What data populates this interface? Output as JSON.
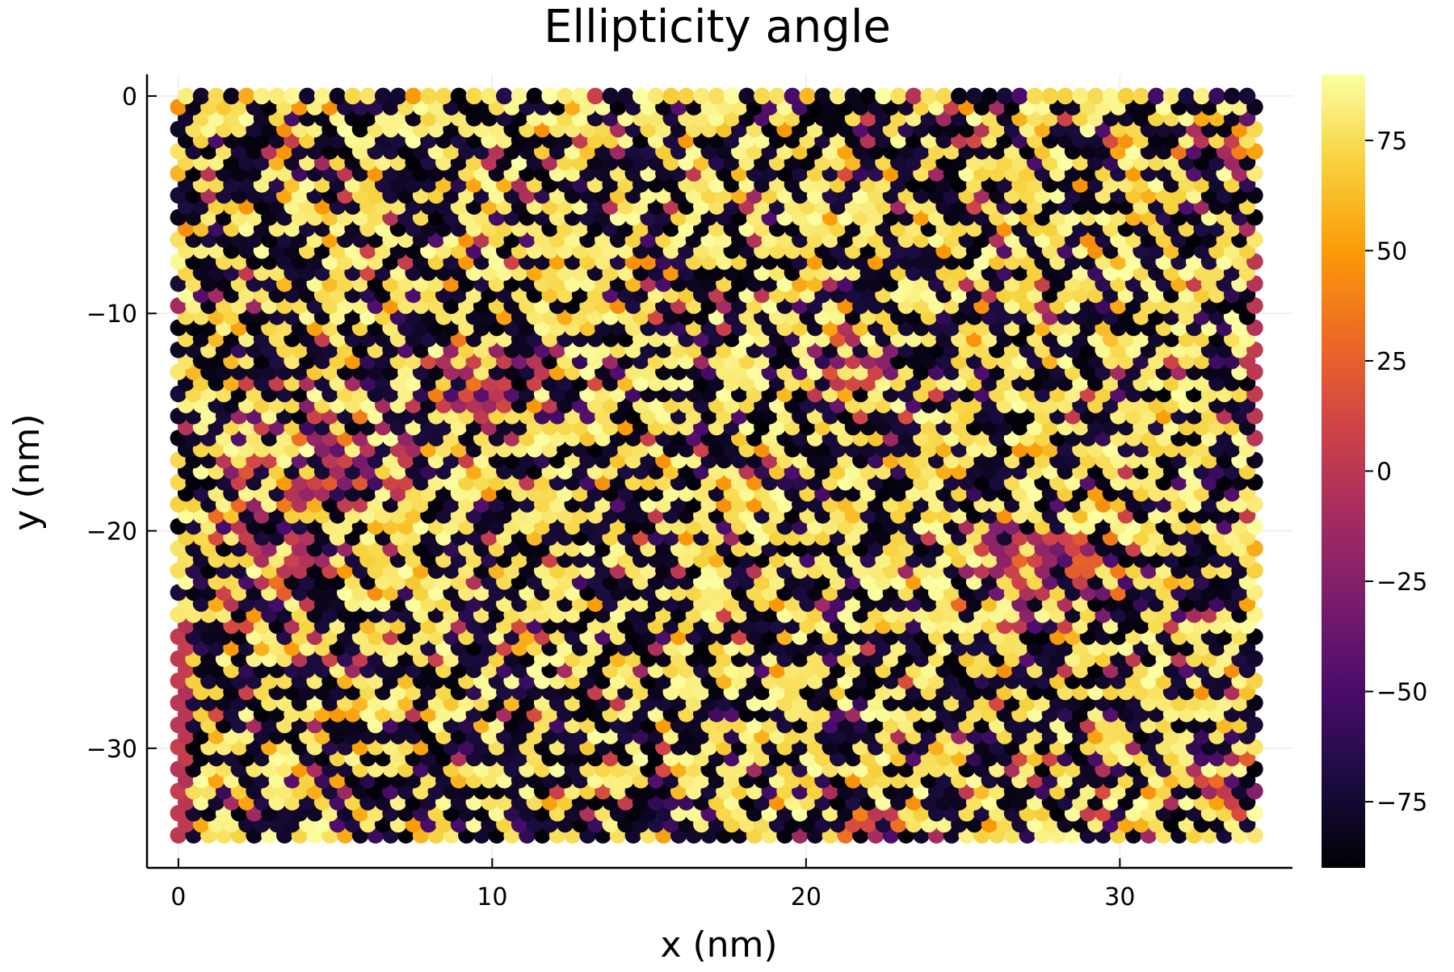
{
  "chart_data": {
    "type": "heatmap",
    "marker": "scatter",
    "title": "Ellipticity angle",
    "xlabel": "x (nm)",
    "ylabel": "y (nm)",
    "xlim": [
      -1,
      35.5
    ],
    "ylim": [
      -35.5,
      1
    ],
    "xticks": [
      0,
      10,
      20,
      30
    ],
    "xtick_labels": [
      "0",
      "10",
      "20",
      "30"
    ],
    "yticks": [
      0,
      -10,
      -20,
      -30
    ],
    "ytick_labels": [
      "0",
      "−10",
      "−20",
      "−30"
    ],
    "grid": true,
    "colormap": "inferno",
    "colormap_stops": [
      "#000004",
      "#1b0c41",
      "#4a0c6b",
      "#781c6d",
      "#a52c60",
      "#cf4446",
      "#ed6925",
      "#fb9b06",
      "#f7d13d",
      "#fcffa4"
    ],
    "colorbar": {
      "range": [
        -90,
        90
      ],
      "ticks": [
        75,
        50,
        25,
        0,
        -25,
        -50,
        -75
      ],
      "tick_labels": [
        "75",
        "50",
        "25",
        "0",
        "−25",
        "−50",
        "−75"
      ],
      "placement": "right"
    },
    "grid_data": {
      "x_range": [
        0,
        34.3
      ],
      "y_range": [
        -34.0,
        0
      ],
      "columns": 72,
      "rows": 68,
      "hex_offset": true,
      "description_of_values": "Angle in degrees; mostly near ±90 (dark) with warm patches near 0 concentrated around x 1-12, y -10 to -25, and scattered along x 20-35"
    },
    "clusters": [
      {
        "x": 4.5,
        "y": -17.0,
        "radius": 4.5,
        "value": 0
      },
      {
        "x": 9.5,
        "y": -13.0,
        "radius": 2.5,
        "value": 5
      },
      {
        "x": 21.5,
        "y": -12.5,
        "radius": 2.2,
        "value": 10
      },
      {
        "x": 33.0,
        "y": -2.0,
        "radius": 1.8,
        "value": -5
      },
      {
        "x": 27.5,
        "y": -21.5,
        "radius": 4.0,
        "value": -45
      },
      {
        "x": 33.5,
        "y": -31.5,
        "radius": 2.0,
        "value": -30
      },
      {
        "x": 22.0,
        "y": -33.5,
        "radius": 1.5,
        "value": -20
      },
      {
        "x": 4.0,
        "y": -21.0,
        "radius": 2.5,
        "value": -30
      }
    ]
  }
}
